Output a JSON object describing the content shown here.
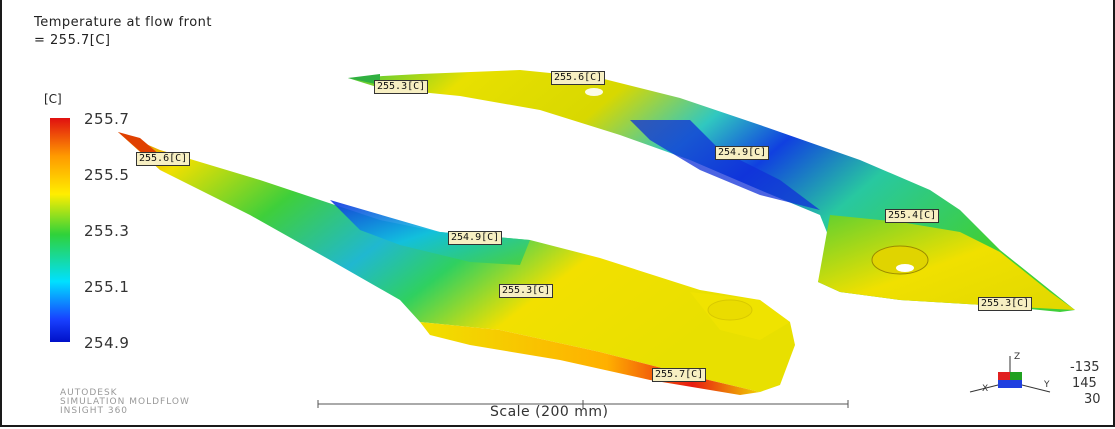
{
  "result": {
    "title_line1": "Temperature at flow front",
    "title_line2": "= 255.7[C]"
  },
  "legend": {
    "unit": "[C]",
    "ticks": [
      "255.7",
      "255.5",
      "255.3",
      "255.1",
      "254.9"
    ],
    "colors": [
      "#e01010",
      "#ffee00",
      "#2fd23a",
      "#00e0ff",
      "#0010c8"
    ]
  },
  "probes": [
    {
      "id": "probe-1",
      "text": "255.3[C]"
    },
    {
      "id": "probe-2",
      "text": "255.6[C]"
    },
    {
      "id": "probe-3",
      "text": "254.9[C]"
    },
    {
      "id": "probe-4",
      "text": "255.6[C]"
    },
    {
      "id": "probe-5",
      "text": "254.9[C]"
    },
    {
      "id": "probe-6",
      "text": "255.4[C]"
    },
    {
      "id": "probe-7",
      "text": "255.3[C]"
    },
    {
      "id": "probe-8",
      "text": "255.3[C]"
    },
    {
      "id": "probe-9",
      "text": "255.7[C]"
    }
  ],
  "branding": {
    "line1": "AUTODESK",
    "line2": "SIMULATION MOLDFLOW",
    "line3": "INSIGHT 360"
  },
  "scale": {
    "label": "Scale (200 mm)"
  },
  "triad": {
    "z_label": "Z",
    "x_label": "X",
    "y_label": "Y",
    "angle1": "-135",
    "angle2": "145",
    "angle3": "30"
  }
}
